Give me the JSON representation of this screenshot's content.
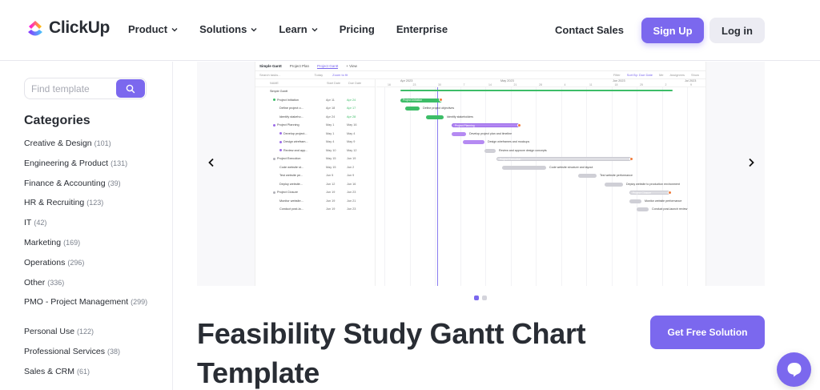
{
  "header": {
    "logo_text": "ClickUp",
    "nav": [
      {
        "label": "Product",
        "dropdown": true
      },
      {
        "label": "Solutions",
        "dropdown": true
      },
      {
        "label": "Learn",
        "dropdown": true
      },
      {
        "label": "Pricing",
        "dropdown": false
      },
      {
        "label": "Enterprise",
        "dropdown": false
      }
    ],
    "contact_sales": "Contact Sales",
    "sign_up": "Sign Up",
    "log_in": "Log in"
  },
  "sidebar": {
    "search_placeholder": "Find template",
    "categories_title": "Categories",
    "categories": [
      {
        "label": "Creative & Design",
        "count": "(101)"
      },
      {
        "label": "Engineering & Product",
        "count": "(131)"
      },
      {
        "label": "Finance & Accounting",
        "count": "(39)"
      },
      {
        "label": "HR & Recruiting",
        "count": "(123)"
      },
      {
        "label": "IT",
        "count": "(42)"
      },
      {
        "label": "Marketing",
        "count": "(169)"
      },
      {
        "label": "Operations",
        "count": "(296)"
      },
      {
        "label": "Other",
        "count": "(336)"
      },
      {
        "label": "PMO - Project Management",
        "count": "(299)"
      },
      {
        "label": "Personal Use",
        "count": "(122)"
      },
      {
        "label": "Professional Services",
        "count": "(38)"
      },
      {
        "label": "Sales & CRM",
        "count": "(61)"
      }
    ]
  },
  "preview": {
    "tabs": [
      "Simple Gantt",
      "Project Plan",
      "Project Gantt",
      "+ View"
    ],
    "toolbar_left": [
      "Search tasks...",
      "Today",
      "Zoom to fit"
    ],
    "toolbar_right": [
      "Filter",
      "Sort By: Due Date",
      "Me",
      "Assignees",
      "Show"
    ],
    "table_headers": [
      "NAME",
      "Start Date",
      "Due Date"
    ],
    "months": [
      "Apr 2023",
      "May 2023",
      "Jun 2023",
      "Jul 2023"
    ],
    "days": [
      "16",
      "23",
      "30",
      "7",
      "14",
      "21",
      "28",
      "4",
      "11",
      "18",
      "25",
      "2",
      "9"
    ],
    "rows": [
      {
        "name": "Simple Gantt",
        "start": "",
        "due": "",
        "color": ""
      },
      {
        "name": "Project Initiation",
        "start": "Apr 11",
        "due": "Apr 24",
        "color": "#3dbd68",
        "due_green": true
      },
      {
        "name": "Define project o...",
        "start": "Apr 18",
        "due": "Apr 17",
        "color": "",
        "due_green": true
      },
      {
        "name": "Identify stakeho...",
        "start": "Apr 24",
        "due": "Apr 28",
        "color": "",
        "due_green": true
      },
      {
        "name": "Project Planning",
        "start": "May 1",
        "due": "May 16",
        "color": "#9b6be8"
      },
      {
        "name": "Develop project...",
        "start": "May 1",
        "due": "May 4",
        "color": "#9b6be8"
      },
      {
        "name": "Design wirefram...",
        "start": "May 4",
        "due": "May 9",
        "color": "#9b6be8"
      },
      {
        "name": "Review and app...",
        "start": "May 10",
        "due": "May 12",
        "color": "#9b6be8"
      },
      {
        "name": "Project Execution",
        "start": "May 15",
        "due": "Jun 19",
        "color": "#b0b0b8"
      },
      {
        "name": "Code website st...",
        "start": "May 15",
        "due": "Jun 2",
        "color": ""
      },
      {
        "name": "Test website pe...",
        "start": "Jun 5",
        "due": "Jun 9",
        "color": ""
      },
      {
        "name": "Deploy website...",
        "start": "Jun 12",
        "due": "Jun 16",
        "color": ""
      },
      {
        "name": "Project Closure",
        "start": "Jun 19",
        "due": "Jun 23",
        "color": "#b0b0b8"
      },
      {
        "name": "Monitor website...",
        "start": "Jun 19",
        "due": "Jun 21",
        "color": ""
      },
      {
        "name": "Conduct post-la...",
        "start": "Jun 19",
        "due": "Jun 23",
        "color": ""
      }
    ],
    "bar_labels": {
      "initiation": "Project Initiation",
      "define": "Define project objectives",
      "identify": "Identify stakeholders",
      "planning": "Project Planning",
      "develop": "Develop project plan and timeline",
      "design": "Design wireframes and mockups",
      "review": "Review and approve design concepts",
      "execution": "Project Execution",
      "code": "Code website structure and layout",
      "test": "Test website performance",
      "deploy": "Deploy website to production environment",
      "closure": "Project Closure",
      "monitor": "Monitor website performance",
      "conduct": "Conduct post-launch review"
    }
  },
  "page_title": "Feasibility Study Gantt Chart Template",
  "cta_label": "Get Free Solution",
  "colors": {
    "accent": "#7b68ee",
    "text": "#292d34"
  }
}
